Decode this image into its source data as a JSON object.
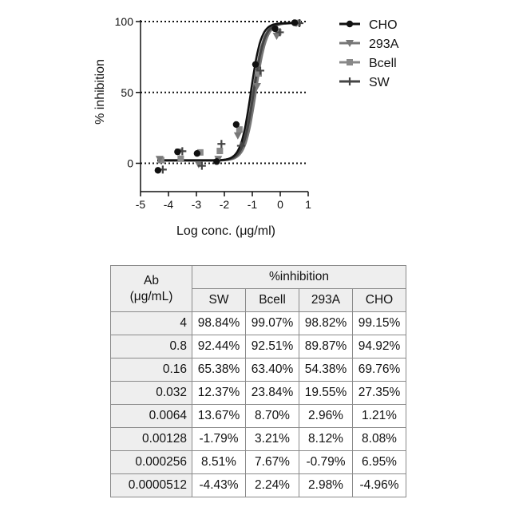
{
  "chart_data": {
    "type": "line",
    "xlabel": "Log conc. (μg/ml)",
    "ylabel": "% inhibition",
    "xlim": [
      -5,
      1
    ],
    "ylim": [
      -20,
      100
    ],
    "x_ticks": [
      "-5",
      "-4",
      "-3",
      "-2",
      "-1",
      "0",
      "1"
    ],
    "y_ticks": [
      "0",
      "50",
      "100"
    ],
    "grid": "dotted horizontal lines at 0, 50, 100",
    "legend_position": "right",
    "series": [
      {
        "name": "CHO",
        "marker": "circle",
        "color": "#111111",
        "x": [
          -4.29,
          -3.59,
          -2.89,
          -2.19,
          -1.49,
          -0.8,
          -0.1,
          0.6
        ],
        "y": [
          -4.96,
          8.08,
          6.95,
          1.21,
          27.35,
          69.76,
          94.92,
          99.15
        ],
        "ec50_log": -1.05,
        "hill": 2.4
      },
      {
        "name": "293A",
        "marker": "triangle",
        "color": "#777777",
        "x": [
          -4.29,
          -3.59,
          -2.89,
          -2.19,
          -1.49,
          -0.8,
          -0.1,
          0.6
        ],
        "y": [
          2.98,
          8.12,
          -0.79,
          2.96,
          19.55,
          54.38,
          89.87,
          98.82
        ],
        "ec50_log": -0.88,
        "hill": 2.3
      },
      {
        "name": "Bcell",
        "marker": "square",
        "color": "#888888",
        "x": [
          -4.29,
          -3.59,
          -2.89,
          -2.19,
          -1.49,
          -0.8,
          -0.1,
          0.6
        ],
        "y": [
          2.24,
          3.21,
          7.67,
          8.7,
          23.84,
          63.4,
          92.51,
          99.07
        ],
        "ec50_log": -0.97,
        "hill": 2.3
      },
      {
        "name": "SW",
        "marker": "plus",
        "color": "#444444",
        "x": [
          -4.29,
          -3.59,
          -2.89,
          -2.19,
          -1.49,
          -0.8,
          -0.1,
          0.6
        ],
        "y": [
          -4.43,
          8.51,
          -1.79,
          13.67,
          12.37,
          65.38,
          92.44,
          98.84
        ],
        "ec50_log": -0.95,
        "hill": 2.3
      }
    ]
  },
  "table": {
    "ab_header": "Ab",
    "ab_unit": "(μg/mL)",
    "group_header": "%inhibition",
    "columns": [
      "SW",
      "Bcell",
      "293A",
      "CHO"
    ],
    "rows": [
      {
        "ab": "4",
        "values": [
          "98.84%",
          "99.07%",
          "98.82%",
          "99.15%"
        ]
      },
      {
        "ab": "0.8",
        "values": [
          "92.44%",
          "92.51%",
          "89.87%",
          "94.92%"
        ]
      },
      {
        "ab": "0.16",
        "values": [
          "65.38%",
          "63.40%",
          "54.38%",
          "69.76%"
        ]
      },
      {
        "ab": "0.032",
        "values": [
          "12.37%",
          "23.84%",
          "19.55%",
          "27.35%"
        ]
      },
      {
        "ab": "0.0064",
        "values": [
          "13.67%",
          "8.70%",
          "2.96%",
          "1.21%"
        ]
      },
      {
        "ab": "0.00128",
        "values": [
          "-1.79%",
          "3.21%",
          "8.12%",
          "8.08%"
        ]
      },
      {
        "ab": "0.000256",
        "values": [
          "8.51%",
          "7.67%",
          "-0.79%",
          "6.95%"
        ]
      },
      {
        "ab": "0.0000512",
        "values": [
          "-4.43%",
          "2.24%",
          "2.98%",
          "-4.96%"
        ]
      }
    ]
  }
}
